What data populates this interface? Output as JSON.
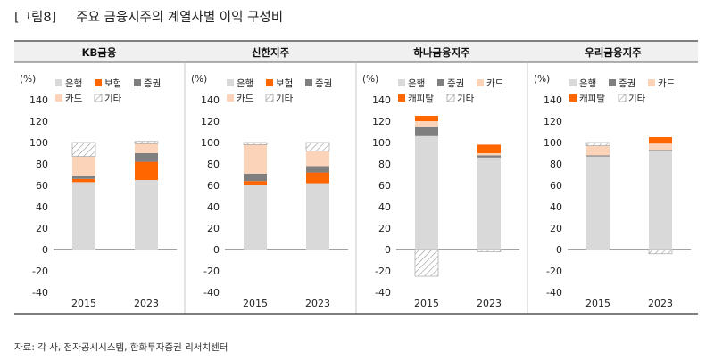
{
  "figure": {
    "label": "[그림8]",
    "title": "주요 금융지주의 계열사별 이익 구성비",
    "source": "자료: 각 사, 전자공시시스템, 한화투자증권 리서치센터"
  },
  "colors": {
    "은행": "#d9d9d9",
    "보험": "#ff6600",
    "증권": "#7f7f7f",
    "카드": "#fbd3b9",
    "캐피탈": "#ff6600",
    "기타": "hatch",
    "header_bg": "#f0f0f0",
    "header_rule": "#333333"
  },
  "chart_data": [
    {
      "type": "bar",
      "stacked": true,
      "title": "KB금융",
      "y_unit_label": "(%)",
      "ylim": [
        -40,
        140
      ],
      "yticks": [
        -40,
        -20,
        0,
        20,
        40,
        60,
        80,
        100,
        120,
        140
      ],
      "categories": [
        "2015",
        "2023"
      ],
      "legend": [
        [
          "은행",
          "보험",
          "증권"
        ],
        [
          "카드",
          "기타"
        ]
      ],
      "series": [
        {
          "name": "은행",
          "values": [
            63,
            65
          ]
        },
        {
          "name": "보험",
          "values": [
            3,
            17
          ]
        },
        {
          "name": "증권",
          "values": [
            3,
            8
          ]
        },
        {
          "name": "카드",
          "values": [
            18,
            9
          ]
        },
        {
          "name": "기타",
          "values": [
            13,
            2
          ]
        }
      ]
    },
    {
      "type": "bar",
      "stacked": true,
      "title": "신한지주",
      "y_unit_label": "(%)",
      "ylim": [
        -40,
        140
      ],
      "yticks": [
        -40,
        -20,
        0,
        20,
        40,
        60,
        80,
        100,
        120,
        140
      ],
      "categories": [
        "2015",
        "2023"
      ],
      "legend": [
        [
          "은행",
          "보험",
          "증권"
        ],
        [
          "카드",
          "기타"
        ]
      ],
      "series": [
        {
          "name": "은행",
          "values": [
            60,
            62
          ]
        },
        {
          "name": "보험",
          "values": [
            4,
            10
          ]
        },
        {
          "name": "증권",
          "values": [
            7,
            6
          ]
        },
        {
          "name": "카드",
          "values": [
            27,
            14
          ]
        },
        {
          "name": "기타",
          "values": [
            2,
            8
          ]
        }
      ]
    },
    {
      "type": "bar",
      "stacked": true,
      "title": "하나금융지주",
      "y_unit_label": "(%)",
      "ylim": [
        -40,
        140
      ],
      "yticks": [
        -40,
        -20,
        0,
        20,
        40,
        60,
        80,
        100,
        120,
        140
      ],
      "categories": [
        "2015",
        "2023"
      ],
      "legend": [
        [
          "은행",
          "증권",
          "카드"
        ],
        [
          "캐피탈",
          "기타"
        ]
      ],
      "series": [
        {
          "name": "은행",
          "values": [
            106,
            86
          ]
        },
        {
          "name": "증권",
          "values": [
            9,
            2
          ]
        },
        {
          "name": "카드",
          "values": [
            5,
            2
          ]
        },
        {
          "name": "캐피탈",
          "values": [
            5,
            8
          ]
        },
        {
          "name": "기타",
          "values": [
            -25,
            -2
          ]
        }
      ]
    },
    {
      "type": "bar",
      "stacked": true,
      "title": "우리금융지주",
      "y_unit_label": "(%)",
      "ylim": [
        -40,
        140
      ],
      "yticks": [
        -40,
        -20,
        0,
        20,
        40,
        60,
        80,
        100,
        120,
        140
      ],
      "categories": [
        "2015",
        "2023"
      ],
      "legend": [
        [
          "은행",
          "증권",
          "카드"
        ],
        [
          "캐피탈",
          "기타"
        ]
      ],
      "series": [
        {
          "name": "은행",
          "values": [
            87,
            92
          ]
        },
        {
          "name": "증권",
          "values": [
            1,
            1
          ]
        },
        {
          "name": "카드",
          "values": [
            9,
            6
          ]
        },
        {
          "name": "캐피탈",
          "values": [
            0,
            6
          ]
        },
        {
          "name": "기타",
          "values": [
            3,
            -4
          ]
        }
      ]
    }
  ]
}
